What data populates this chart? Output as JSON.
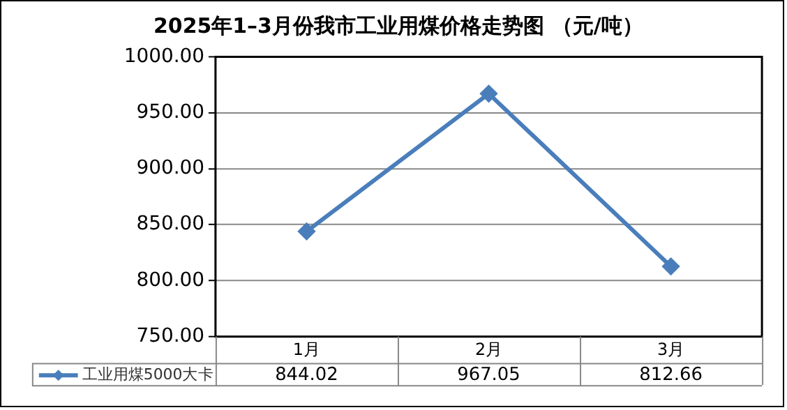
{
  "chart_data": {
    "type": "line",
    "title": "2025年1–3月份我市工业用煤价格走势图 （元/吨）",
    "categories": [
      "1月",
      "2月",
      "3月"
    ],
    "series": [
      {
        "name": "工业用煤5000大卡",
        "color": "#4a7ebb",
        "values": [
          844.02,
          967.05,
          812.66
        ]
      }
    ],
    "ylim": [
      750,
      1000
    ],
    "yticks": [
      {
        "value": 750,
        "label": "750.00"
      },
      {
        "value": 800,
        "label": "800.00"
      },
      {
        "value": 850,
        "label": "850.00"
      },
      {
        "value": 900,
        "label": "900.00"
      },
      {
        "value": 950,
        "label": "950.00"
      },
      {
        "value": 1000,
        "label": "1000.00"
      }
    ],
    "grid": "y",
    "legend": "bottom",
    "marker": "diamond",
    "data_labels": true
  }
}
